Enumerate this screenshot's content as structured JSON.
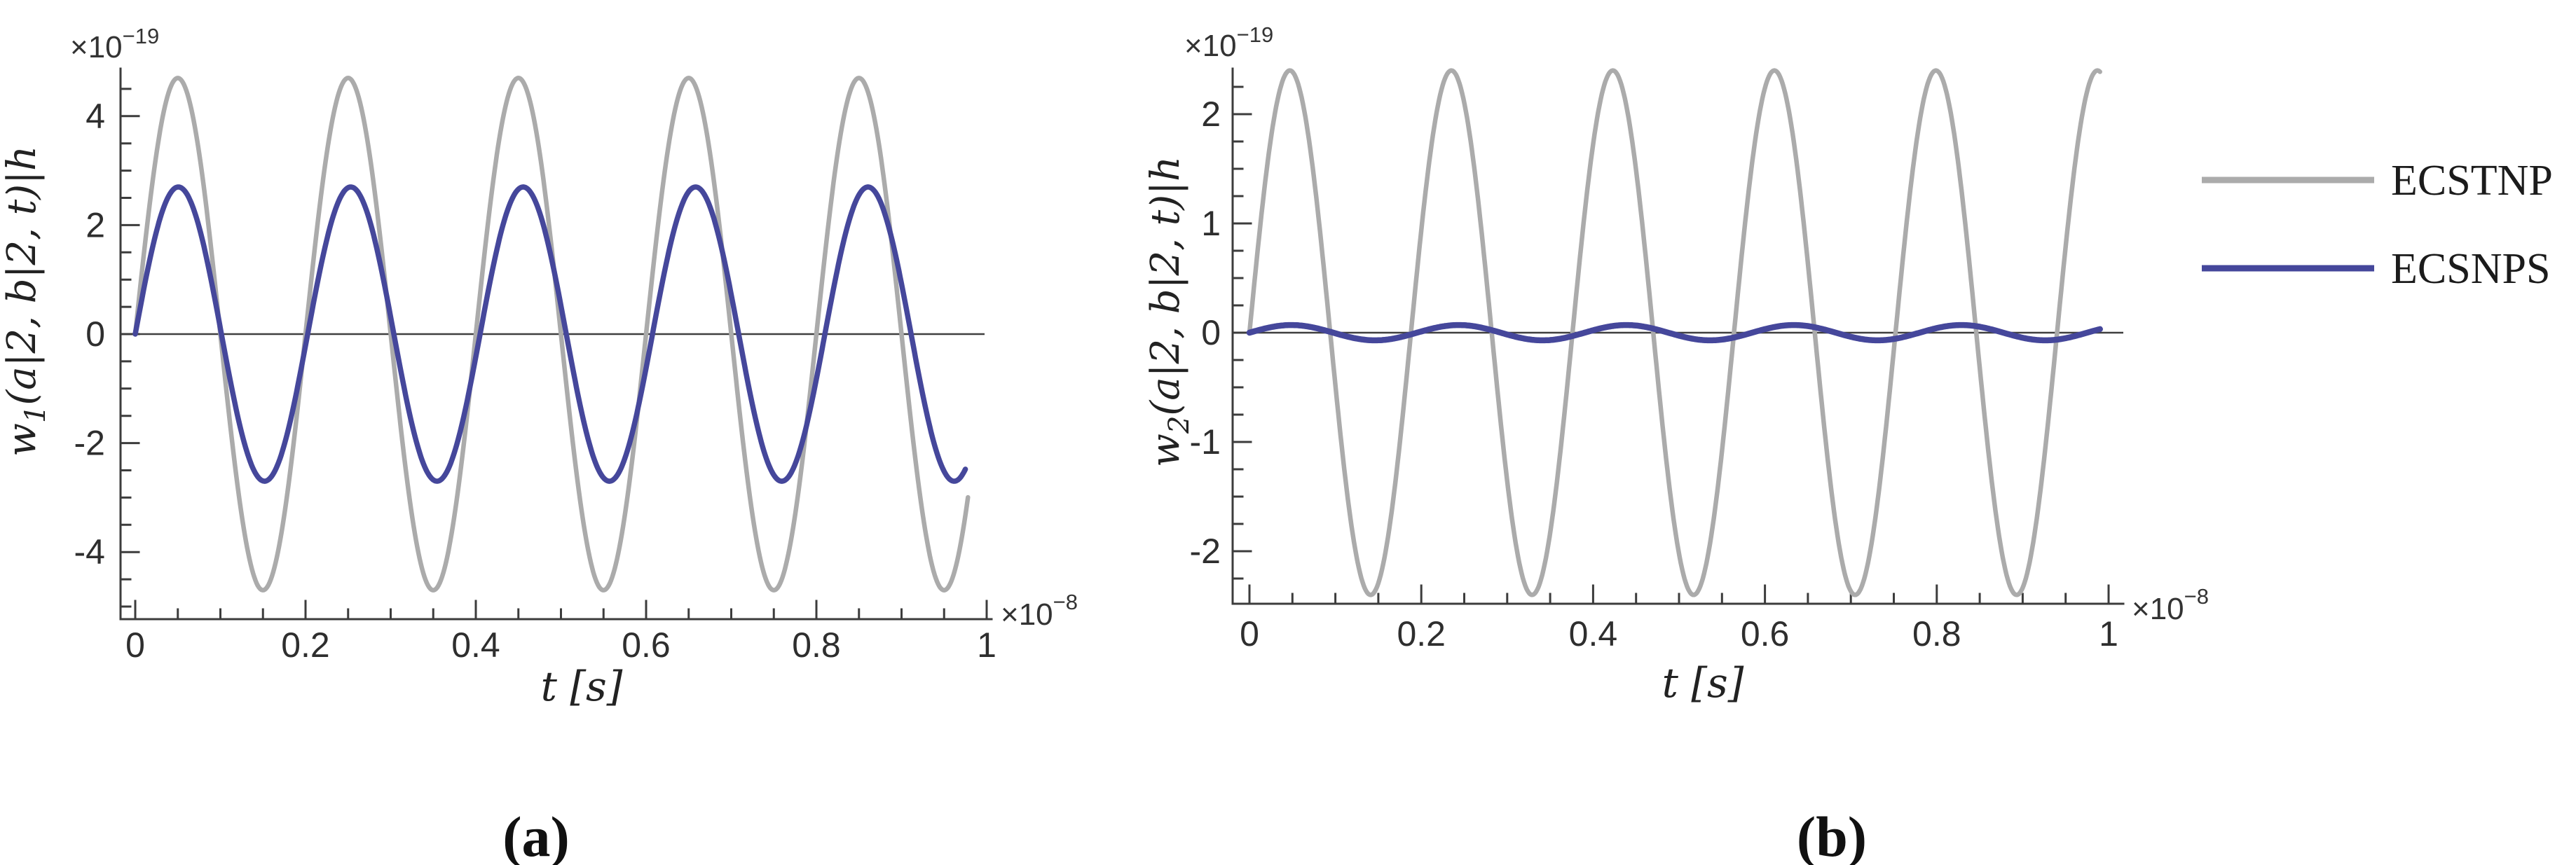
{
  "chart_data": {
    "type": "line",
    "description": "Two panels of sinusoidal time traces comparing ECSTNP and ECSNPS signals",
    "plots": [
      {
        "id": "a",
        "type": "line",
        "panel_label": "(a)",
        "xlabel": "t [s]",
        "ylabel": {
          "pre": "w",
          "sub": "1",
          "post": "(a|2, b|2, t)|h"
        },
        "y_scale_label": {
          "base": "×10",
          "exp": "−19"
        },
        "x_scale_label": {
          "base": "×10",
          "exp": "−8"
        },
        "xlim": [
          0,
          1
        ],
        "ylim": [
          -5.2,
          4.9
        ],
        "xtick_values": [
          0,
          0.2,
          0.4,
          0.6,
          0.8,
          1
        ],
        "xtick_labels": [
          "0",
          "0.2",
          "0.4",
          "0.6",
          "0.8",
          "1"
        ],
        "ytick_values": [
          4,
          2,
          0,
          -2,
          -4
        ],
        "ytick_labels": [
          "4",
          "2",
          "0",
          "-2",
          "-4"
        ],
        "x_minor_step": 0.05,
        "y_minor_step": 0.5,
        "grid": false,
        "series": [
          {
            "name": "ECSTNP",
            "color": "#ABABAB",
            "line_width": 6.5,
            "waveform": "sine",
            "amplitude_e19": 4.7,
            "period_e8": 0.2,
            "t_start": 0,
            "t_end": 0.978,
            "peaks_t": [
              0.05,
              0.25,
              0.45,
              0.65,
              0.85
            ]
          },
          {
            "name": "ECSNPS",
            "color": "#45479B",
            "line_width": 7.5,
            "waveform": "sine",
            "amplitude_e19": 2.7,
            "period_e8": 0.2025,
            "t_start": 0,
            "t_end": 0.975,
            "peaks_t": [
              0.051,
              0.253,
              0.455,
              0.658,
              0.86
            ]
          }
        ]
      },
      {
        "id": "b",
        "type": "line",
        "panel_label": "(b)",
        "xlabel": "t [s]",
        "ylabel": {
          "pre": "w",
          "sub": "2",
          "post": "(a|2, b|2, t)|h"
        },
        "y_scale_label": {
          "base": "×10",
          "exp": "−19"
        },
        "x_scale_label": {
          "base": "×10",
          "exp": "−8"
        },
        "xlim": [
          0,
          1
        ],
        "ylim": [
          -2.48,
          2.42
        ],
        "xtick_values": [
          0,
          0.2,
          0.4,
          0.6,
          0.8,
          1
        ],
        "xtick_labels": [
          "0",
          "0.2",
          "0.4",
          "0.6",
          "0.8",
          "1"
        ],
        "ytick_values": [
          2,
          1,
          0,
          -1,
          -2
        ],
        "ytick_labels": [
          "2",
          "1",
          "0",
          "-1",
          "-2"
        ],
        "x_minor_step": 0.05,
        "y_minor_step": 0.25,
        "grid": false,
        "series": [
          {
            "name": "ECSTNP",
            "color": "#ABABAB",
            "line_width": 6.5,
            "waveform": "sine",
            "amplitude_e19": 2.4,
            "period_e8": 0.188,
            "t_start": 0,
            "t_end": 0.99,
            "peaks_t": [
              0.047,
              0.235,
              0.423,
              0.611,
              0.799,
              0.987
            ]
          },
          {
            "name": "ECSNPS",
            "color": "#45479B",
            "line_width": 8.5,
            "waveform": "sine",
            "amplitude_e19": 0.07,
            "period_e8": 0.195,
            "t_start": 0,
            "t_end": 0.99,
            "peaks_t": [
              0.049,
              0.244,
              0.439,
              0.634,
              0.829
            ]
          }
        ]
      }
    ]
  },
  "legend": {
    "items": [
      {
        "label": "ECSTNP",
        "color": "#ABABAB"
      },
      {
        "label": "ECSNPS",
        "color": "#45479B"
      }
    ]
  },
  "captions": {
    "a": "(a)",
    "b": "(b)"
  }
}
